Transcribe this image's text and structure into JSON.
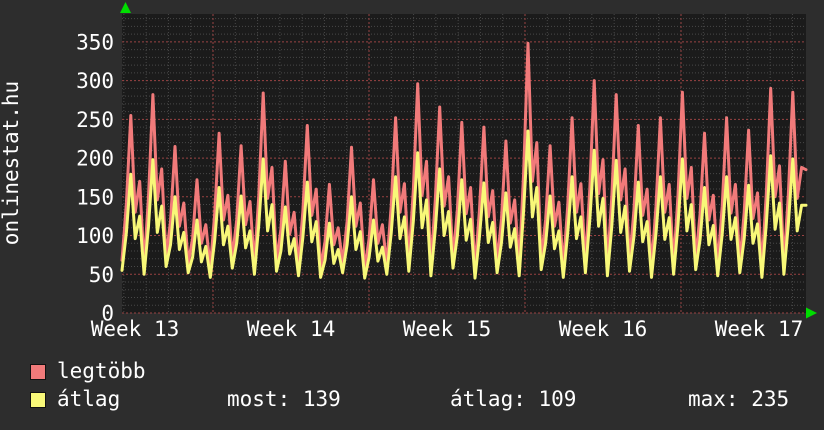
{
  "title": "onlinestat.hu",
  "colors": {
    "canvas_bg": "#2d2d2d",
    "plot_bg": "#1b1b1b",
    "grid_minor": "#484848",
    "grid_major": "#9a4343",
    "axis_arrow": "#00dd00",
    "text": "#ffffff",
    "series_legtobb": "#f17a7a",
    "series_atlag": "#f8f878"
  },
  "chart_data": {
    "type": "line",
    "title": "onlinestat.hu",
    "x_tick_labels": [
      "Week 13",
      "Week 14",
      "Week 15",
      "Week 16",
      "Week 17"
    ],
    "y_ticks": [
      0,
      50,
      100,
      150,
      200,
      250,
      300,
      350
    ],
    "ylim": [
      0,
      386
    ],
    "days_shown": 31,
    "points_per_day": 5,
    "grid": "minor gray dotted per 10 units / per day, major red dashed per 50 units / per week",
    "legend_position": "bottom-left",
    "series": [
      {
        "name": "legtöbb",
        "color": "#f17a7a",
        "values": [
          68,
          142,
          255,
          130,
          170,
          60,
          150,
          282,
          146,
          186,
          72,
          118,
          215,
          112,
          142,
          64,
          96,
          172,
          90,
          114,
          58,
          128,
          232,
          120,
          152,
          70,
          120,
          216,
          114,
          144,
          62,
          152,
          284,
          148,
          188,
          66,
          108,
          196,
          102,
          130,
          60,
          132,
          242,
          126,
          160,
          58,
          92,
          166,
          88,
          110,
          64,
          118,
          214,
          112,
          142,
          56,
          96,
          172,
          90,
          114,
          62,
          138,
          252,
          130,
          167,
          66,
          158,
          296,
          152,
          196,
          60,
          146,
          266,
          138,
          176,
          70,
          134,
          246,
          128,
          162,
          56,
          132,
          240,
          124,
          158,
          64,
          122,
          222,
          116,
          146,
          60,
          180,
          348,
          170,
          220,
          68,
          120,
          216,
          112,
          143,
          58,
          138,
          252,
          130,
          167,
          64,
          160,
          300,
          154,
          198,
          60,
          150,
          282,
          146,
          186,
          66,
          132,
          242,
          126,
          160,
          58,
          138,
          252,
          130,
          166,
          62,
          152,
          285,
          148,
          188,
          68,
          128,
          232,
          120,
          152,
          60,
          138,
          252,
          129,
          166,
          64,
          130,
          236,
          122,
          155,
          58,
          154,
          290,
          150,
          190,
          62,
          152,
          285,
          148,
          188,
          185
        ]
      },
      {
        "name": "átlag",
        "color": "#f8f878",
        "values": [
          55,
          104,
          179,
          96,
          125,
          50,
          112,
          198,
          104,
          138,
          60,
          88,
          150,
          82,
          104,
          52,
          72,
          120,
          66,
          86,
          46,
          94,
          162,
          88,
          112,
          58,
          90,
          151,
          84,
          106,
          50,
          114,
          199,
          106,
          140,
          54,
          80,
          137,
          76,
          96,
          48,
          98,
          169,
          92,
          118,
          46,
          68,
          116,
          64,
          82,
          52,
          88,
          150,
          82,
          105,
          45,
          72,
          120,
          67,
          85,
          50,
          103,
          176,
          96,
          124,
          54,
          118,
          207,
          110,
          146,
          48,
          108,
          186,
          100,
          131,
          58,
          100,
          172,
          94,
          121,
          45,
          98,
          168,
          91,
          117,
          52,
          91,
          155,
          85,
          109,
          48,
          132,
          235,
          124,
          162,
          56,
          90,
          151,
          83,
          106,
          46,
          103,
          176,
          96,
          124,
          52,
          120,
          210,
          112,
          148,
          48,
          112,
          197,
          104,
          138,
          54,
          98,
          169,
          92,
          118,
          46,
          103,
          176,
          95,
          123,
          50,
          114,
          199,
          106,
          140,
          56,
          95,
          162,
          88,
          113,
          48,
          102,
          176,
          95,
          123,
          52,
          96,
          165,
          90,
          115,
          46,
          115,
          203,
          108,
          142,
          50,
          114,
          199,
          106,
          139,
          139
        ]
      }
    ]
  },
  "legend": {
    "items": [
      {
        "label": "legtöbb",
        "color": "#f17a7a"
      },
      {
        "label": "átlag",
        "color": "#f8f878"
      }
    ]
  },
  "stats": [
    {
      "label": "most:",
      "value": "139"
    },
    {
      "label": "átlag:",
      "value": "109"
    },
    {
      "label": "max:",
      "value": "235"
    }
  ]
}
